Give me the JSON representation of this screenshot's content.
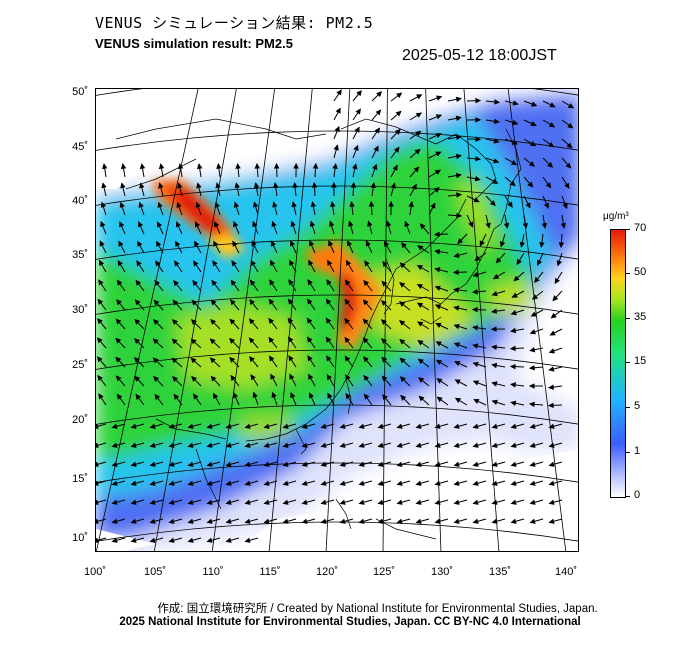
{
  "header": {
    "title_jp": "VENUS シミュレーション結果: PM2.5",
    "title_en": "VENUS simulation result: PM2.5",
    "timestamp": "2025-05-12 18:00JST"
  },
  "map": {
    "lat_labels": [
      "50˚",
      "45˚",
      "40˚",
      "35˚",
      "30˚",
      "25˚",
      "20˚",
      "15˚",
      "10˚"
    ],
    "lon_labels": [
      "100˚",
      "105˚",
      "110˚",
      "115˚",
      "120˚",
      "125˚",
      "130˚",
      "135˚",
      "140˚"
    ],
    "colors": {
      "land_line": "#000000",
      "arrow": "#000000"
    }
  },
  "colorbar": {
    "unit": "μg/m³",
    "labels": [
      "70",
      "50",
      "35",
      "15",
      "5",
      "1",
      "0"
    ],
    "colors": [
      "#e61a0a",
      "#ff7a10",
      "#ffd21a",
      "#27d11d",
      "#1fb6ff",
      "#3c5dff",
      "#ffffff"
    ]
  },
  "footer": {
    "credit_line1": "作成: 国立環境研究所 / Created by National Institute for Environmental Studies, Japan.",
    "credit_line2": "2025 National Institute for Environmental Studies, Japan. CC BY-NC 4.0 International"
  }
}
